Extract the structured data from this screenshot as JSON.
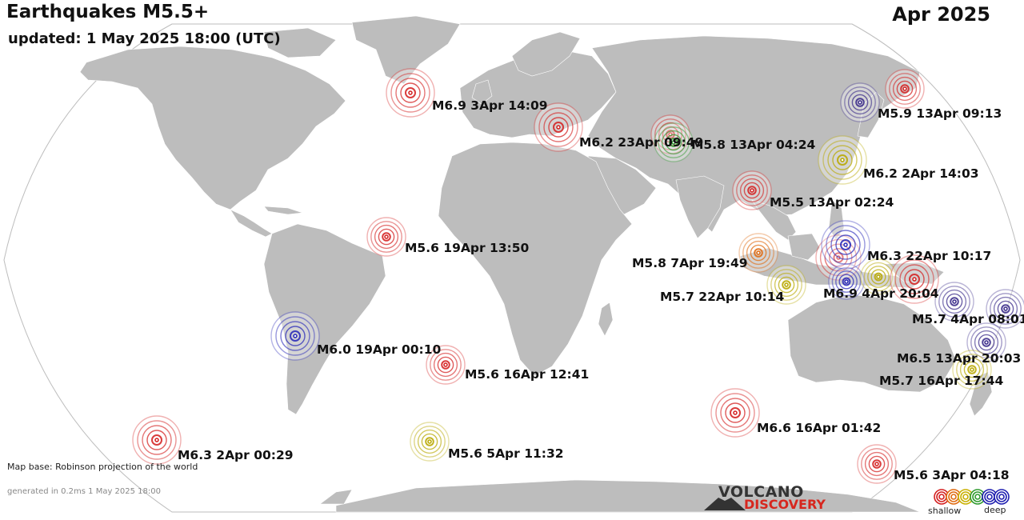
{
  "header": {
    "title": "Earthquakes M5.5+",
    "updated": "updated:  1 May 2025 18:00 (UTC)",
    "period": "Apr 2025"
  },
  "footer": {
    "map_base": "Map base: Robinson projection of the world",
    "generated": "generated in 0.2ms  1 May 2025 18:00"
  },
  "logo": {
    "top": "VOLCANO",
    "bottom": "DISCOVERY"
  },
  "legend": {
    "shallow": "shallow",
    "deep": "deep",
    "colors": [
      "#d42020",
      "#e06a10",
      "#c9b000",
      "#2e9a2e",
      "#2020b0",
      "#2020b0"
    ]
  },
  "depth_colors": {
    "red": "#d42020",
    "orange": "#e06a10",
    "yellow": "#b8a800",
    "green": "#2e9a2e",
    "blue": "#2828b8",
    "purple": "#3a2a8a"
  },
  "earthquakes": [
    {
      "label": "M6.9  3Apr 14:09",
      "depth": "red"
    },
    {
      "label": "M6.2 23Apr 09:49",
      "depth": "red"
    },
    {
      "label": "M5.8 13Apr 04:24",
      "depth": "green"
    },
    {
      "label": "M5.9 13Apr 09:13",
      "depth": "purple"
    },
    {
      "label": "M6.2  2Apr 14:03",
      "depth": "yellow"
    },
    {
      "label": "M5.5 13Apr 02:24",
      "depth": "red"
    },
    {
      "label": "M5.6 19Apr 13:50",
      "depth": "red"
    },
    {
      "label": "M5.8  7Apr 19:49",
      "depth": "orange"
    },
    {
      "label": "M6.3 22Apr 10:17",
      "depth": "blue"
    },
    {
      "label": "M5.7 22Apr 10:14",
      "depth": "yellow"
    },
    {
      "label": "M6.9  4Apr 20:04",
      "depth": "red"
    },
    {
      "label": "M5.7  4Apr 08:01",
      "depth": "purple"
    },
    {
      "label": "M6.0 19Apr 00:10",
      "depth": "blue"
    },
    {
      "label": "M5.6 16Apr 12:41",
      "depth": "red"
    },
    {
      "label": "M6.5 13Apr 20:03",
      "depth": "purple"
    },
    {
      "label": "M5.7 16Apr 17:44",
      "depth": "yellow"
    },
    {
      "label": "M6.6 16Apr 01:42",
      "depth": "red"
    },
    {
      "label": "M6.3  2Apr 00:29",
      "depth": "red"
    },
    {
      "label": "M5.6  5Apr 11:32",
      "depth": "yellow"
    },
    {
      "label": "M5.6  3Apr 04:18",
      "depth": "red"
    }
  ]
}
